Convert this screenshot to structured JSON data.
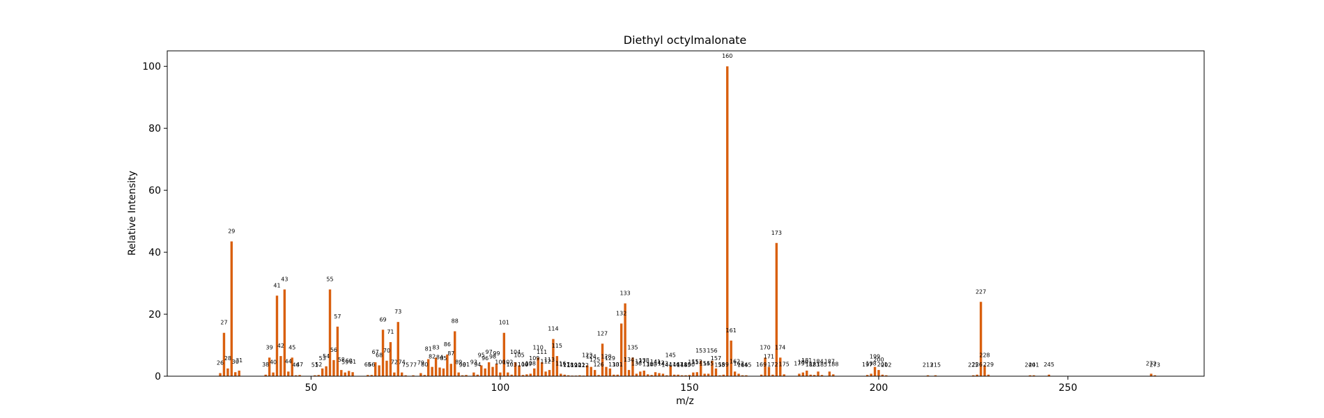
{
  "chart_data": {
    "type": "bar",
    "title": "Diethyl octylmalonate",
    "xlabel": "m/z",
    "ylabel": "Relative Intensity",
    "xlim": [
      12,
      286
    ],
    "ylim": [
      0,
      105
    ],
    "xticks": [
      50,
      100,
      150,
      200,
      250
    ],
    "yticks": [
      0,
      20,
      40,
      60,
      80,
      100
    ],
    "grid": false,
    "bar_color": "#d95f0e",
    "peaks": [
      {
        "mz": 26,
        "intensity": 1.0
      },
      {
        "mz": 27,
        "intensity": 14.0
      },
      {
        "mz": 28,
        "intensity": 2.5
      },
      {
        "mz": 29,
        "intensity": 43.5
      },
      {
        "mz": 30,
        "intensity": 1.3
      },
      {
        "mz": 31,
        "intensity": 1.8
      },
      {
        "mz": 38,
        "intensity": 0.5
      },
      {
        "mz": 39,
        "intensity": 6.0
      },
      {
        "mz": 40,
        "intensity": 1.2
      },
      {
        "mz": 41,
        "intensity": 26.0
      },
      {
        "mz": 42,
        "intensity": 6.5
      },
      {
        "mz": 43,
        "intensity": 28.0
      },
      {
        "mz": 44,
        "intensity": 1.5
      },
      {
        "mz": 45,
        "intensity": 6.0
      },
      {
        "mz": 46,
        "intensity": 0.3
      },
      {
        "mz": 47,
        "intensity": 0.4
      },
      {
        "mz": 51,
        "intensity": 0.3
      },
      {
        "mz": 52,
        "intensity": 0.4
      },
      {
        "mz": 53,
        "intensity": 2.5
      },
      {
        "mz": 54,
        "intensity": 3.2
      },
      {
        "mz": 55,
        "intensity": 28.0
      },
      {
        "mz": 56,
        "intensity": 5.2
      },
      {
        "mz": 57,
        "intensity": 16.0
      },
      {
        "mz": 58,
        "intensity": 2.0
      },
      {
        "mz": 59,
        "intensity": 1.2
      },
      {
        "mz": 60,
        "intensity": 1.7
      },
      {
        "mz": 61,
        "intensity": 1.3
      },
      {
        "mz": 65,
        "intensity": 0.4
      },
      {
        "mz": 66,
        "intensity": 0.4
      },
      {
        "mz": 67,
        "intensity": 4.5
      },
      {
        "mz": 68,
        "intensity": 3.5
      },
      {
        "mz": 69,
        "intensity": 15.0
      },
      {
        "mz": 70,
        "intensity": 5.0
      },
      {
        "mz": 71,
        "intensity": 11.0
      },
      {
        "mz": 72,
        "intensity": 1.2
      },
      {
        "mz": 73,
        "intensity": 17.5
      },
      {
        "mz": 74,
        "intensity": 1.2
      },
      {
        "mz": 75,
        "intensity": 0.3
      },
      {
        "mz": 77,
        "intensity": 0.3
      },
      {
        "mz": 79,
        "intensity": 1.0
      },
      {
        "mz": 80,
        "intensity": 0.4
      },
      {
        "mz": 81,
        "intensity": 5.5
      },
      {
        "mz": 82,
        "intensity": 3.0
      },
      {
        "mz": 83,
        "intensity": 6.0
      },
      {
        "mz": 84,
        "intensity": 2.8
      },
      {
        "mz": 85,
        "intensity": 2.5
      },
      {
        "mz": 86,
        "intensity": 7.0
      },
      {
        "mz": 87,
        "intensity": 4.0
      },
      {
        "mz": 88,
        "intensity": 14.5
      },
      {
        "mz": 89,
        "intensity": 1.2
      },
      {
        "mz": 90,
        "intensity": 0.3
      },
      {
        "mz": 91,
        "intensity": 0.4
      },
      {
        "mz": 93,
        "intensity": 1.2
      },
      {
        "mz": 94,
        "intensity": 0.5
      },
      {
        "mz": 95,
        "intensity": 3.5
      },
      {
        "mz": 96,
        "intensity": 2.5
      },
      {
        "mz": 97,
        "intensity": 4.5
      },
      {
        "mz": 98,
        "intensity": 3.0
      },
      {
        "mz": 99,
        "intensity": 4.0
      },
      {
        "mz": 100,
        "intensity": 1.2
      },
      {
        "mz": 101,
        "intensity": 14.0
      },
      {
        "mz": 102,
        "intensity": 1.2
      },
      {
        "mz": 103,
        "intensity": 0.5
      },
      {
        "mz": 104,
        "intensity": 4.5
      },
      {
        "mz": 105,
        "intensity": 3.5
      },
      {
        "mz": 106,
        "intensity": 0.4
      },
      {
        "mz": 107,
        "intensity": 0.6
      },
      {
        "mz": 108,
        "intensity": 0.8
      },
      {
        "mz": 109,
        "intensity": 2.5
      },
      {
        "mz": 110,
        "intensity": 6.0
      },
      {
        "mz": 111,
        "intensity": 4.5
      },
      {
        "mz": 112,
        "intensity": 1.5
      },
      {
        "mz": 113,
        "intensity": 2.0
      },
      {
        "mz": 114,
        "intensity": 12.0
      },
      {
        "mz": 115,
        "intensity": 6.5
      },
      {
        "mz": 116,
        "intensity": 0.8
      },
      {
        "mz": 117,
        "intensity": 0.5
      },
      {
        "mz": 118,
        "intensity": 0.3
      },
      {
        "mz": 119,
        "intensity": 0.2
      },
      {
        "mz": 120,
        "intensity": 0.2
      },
      {
        "mz": 121,
        "intensity": 0.3
      },
      {
        "mz": 122,
        "intensity": 0.2
      },
      {
        "mz": 123,
        "intensity": 3.5
      },
      {
        "mz": 124,
        "intensity": 3.0
      },
      {
        "mz": 125,
        "intensity": 2.0
      },
      {
        "mz": 126,
        "intensity": 0.4
      },
      {
        "mz": 127,
        "intensity": 10.5
      },
      {
        "mz": 128,
        "intensity": 3.0
      },
      {
        "mz": 129,
        "intensity": 2.5
      },
      {
        "mz": 130,
        "intensity": 0.5
      },
      {
        "mz": 131,
        "intensity": 0.5
      },
      {
        "mz": 132,
        "intensity": 17.0
      },
      {
        "mz": 133,
        "intensity": 23.5
      },
      {
        "mz": 134,
        "intensity": 2.0
      },
      {
        "mz": 135,
        "intensity": 6.0
      },
      {
        "mz": 136,
        "intensity": 0.8
      },
      {
        "mz": 137,
        "intensity": 1.5
      },
      {
        "mz": 138,
        "intensity": 1.8
      },
      {
        "mz": 139,
        "intensity": 0.6
      },
      {
        "mz": 140,
        "intensity": 0.4
      },
      {
        "mz": 141,
        "intensity": 1.3
      },
      {
        "mz": 142,
        "intensity": 1.0
      },
      {
        "mz": 143,
        "intensity": 0.8
      },
      {
        "mz": 144,
        "intensity": 0.3
      },
      {
        "mz": 145,
        "intensity": 3.5
      },
      {
        "mz": 146,
        "intensity": 0.5
      },
      {
        "mz": 147,
        "intensity": 0.5
      },
      {
        "mz": 148,
        "intensity": 0.3
      },
      {
        "mz": 149,
        "intensity": 0.3
      },
      {
        "mz": 150,
        "intensity": 0.4
      },
      {
        "mz": 151,
        "intensity": 1.2
      },
      {
        "mz": 152,
        "intensity": 1.3
      },
      {
        "mz": 153,
        "intensity": 5.0
      },
      {
        "mz": 154,
        "intensity": 0.8
      },
      {
        "mz": 155,
        "intensity": 0.8
      },
      {
        "mz": 156,
        "intensity": 5.0
      },
      {
        "mz": 157,
        "intensity": 2.5
      },
      {
        "mz": 158,
        "intensity": 0.3
      },
      {
        "mz": 159,
        "intensity": 0.5
      },
      {
        "mz": 160,
        "intensity": 100.0
      },
      {
        "mz": 161,
        "intensity": 11.5
      },
      {
        "mz": 162,
        "intensity": 1.5
      },
      {
        "mz": 163,
        "intensity": 0.8
      },
      {
        "mz": 164,
        "intensity": 0.3
      },
      {
        "mz": 165,
        "intensity": 0.3
      },
      {
        "mz": 169,
        "intensity": 0.5
      },
      {
        "mz": 170,
        "intensity": 6.0
      },
      {
        "mz": 171,
        "intensity": 3.0
      },
      {
        "mz": 172,
        "intensity": 0.5
      },
      {
        "mz": 173,
        "intensity": 43.0
      },
      {
        "mz": 174,
        "intensity": 6.0
      },
      {
        "mz": 175,
        "intensity": 0.6
      },
      {
        "mz": 179,
        "intensity": 0.8
      },
      {
        "mz": 180,
        "intensity": 1.2
      },
      {
        "mz": 181,
        "intensity": 1.8
      },
      {
        "mz": 182,
        "intensity": 0.5
      },
      {
        "mz": 183,
        "intensity": 0.4
      },
      {
        "mz": 184,
        "intensity": 1.5
      },
      {
        "mz": 185,
        "intensity": 0.4
      },
      {
        "mz": 187,
        "intensity": 1.5
      },
      {
        "mz": 188,
        "intensity": 0.6
      },
      {
        "mz": 197,
        "intensity": 0.4
      },
      {
        "mz": 198,
        "intensity": 0.8
      },
      {
        "mz": 199,
        "intensity": 3.0
      },
      {
        "mz": 200,
        "intensity": 2.0
      },
      {
        "mz": 201,
        "intensity": 0.5
      },
      {
        "mz": 202,
        "intensity": 0.3
      },
      {
        "mz": 213,
        "intensity": 0.3
      },
      {
        "mz": 215,
        "intensity": 0.3
      },
      {
        "mz": 225,
        "intensity": 0.3
      },
      {
        "mz": 226,
        "intensity": 0.5
      },
      {
        "mz": 227,
        "intensity": 24.0
      },
      {
        "mz": 228,
        "intensity": 3.5
      },
      {
        "mz": 229,
        "intensity": 0.5
      },
      {
        "mz": 240,
        "intensity": 0.3
      },
      {
        "mz": 241,
        "intensity": 0.3
      },
      {
        "mz": 245,
        "intensity": 0.5
      },
      {
        "mz": 272,
        "intensity": 0.8
      },
      {
        "mz": 273,
        "intensity": 0.3
      }
    ]
  }
}
